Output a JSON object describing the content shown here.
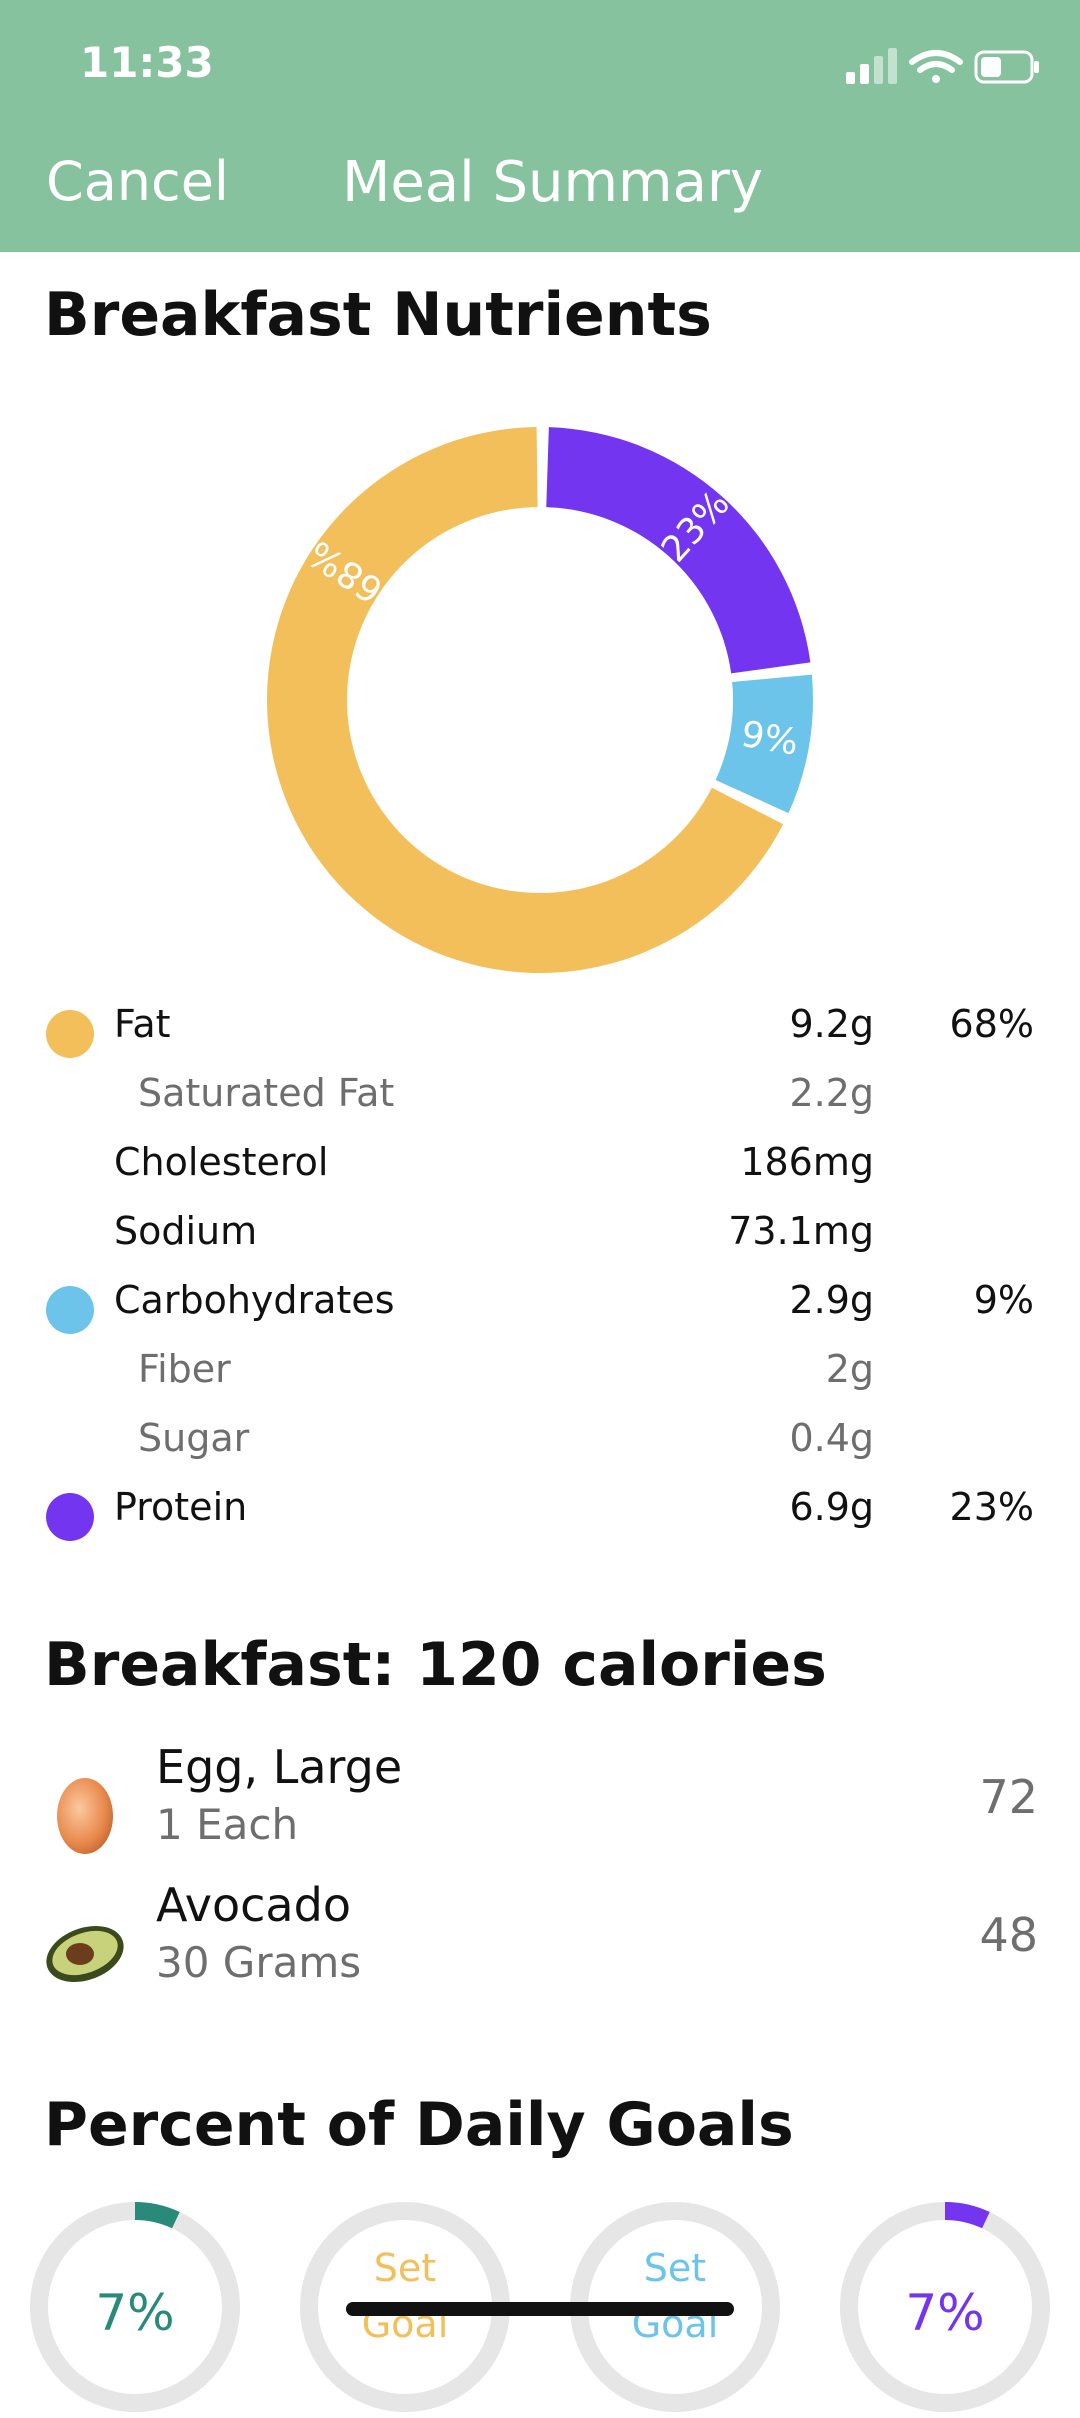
{
  "status_bar": {
    "time": "11:33"
  },
  "nav": {
    "cancel_label": "Cancel",
    "title": "Meal Summary"
  },
  "nutrients": {
    "title": "Breakfast Nutrients",
    "chart_data": {
      "type": "donut",
      "series": [
        {
          "name": "Fat",
          "percent": 68,
          "label": "68%",
          "color": "#f2bf5a"
        },
        {
          "name": "Carbohydrates",
          "percent": 9,
          "label": "9%",
          "color": "#6cc4ea"
        },
        {
          "name": "Protein",
          "percent": 23,
          "label": "23%",
          "color": "#7335f0"
        }
      ]
    },
    "rows": [
      {
        "name": "Fat",
        "amount": "9.2g",
        "pct": "68%",
        "color": "#f2bf5a",
        "sub": false
      },
      {
        "name": "Saturated Fat",
        "amount": "2.2g",
        "pct": "",
        "sub": true
      },
      {
        "name": "Cholesterol",
        "amount": "186mg",
        "pct": "",
        "sub": false
      },
      {
        "name": "Sodium",
        "amount": "73.1mg",
        "pct": "",
        "sub": false
      },
      {
        "name": "Carbohydrates",
        "amount": "2.9g",
        "pct": "9%",
        "color": "#6cc4ea",
        "sub": false
      },
      {
        "name": "Fiber",
        "amount": "2g",
        "pct": "",
        "sub": true
      },
      {
        "name": "Sugar",
        "amount": "0.4g",
        "pct": "",
        "sub": true
      },
      {
        "name": "Protein",
        "amount": "6.9g",
        "pct": "23%",
        "color": "#7335f0",
        "sub": false
      }
    ]
  },
  "calories": {
    "title": "Breakfast: 120 calories",
    "items": [
      {
        "name": "Egg, Large",
        "quantity": "1 Each",
        "calories": "72",
        "icon": "egg-icon"
      },
      {
        "name": "Avocado",
        "quantity": "30 Grams",
        "calories": "48",
        "icon": "avocado-icon"
      }
    ]
  },
  "goals": {
    "title": "Percent of Daily Goals",
    "items": [
      {
        "label": "7%",
        "progress": 0.07,
        "color": "#2a8a7a"
      },
      {
        "label": "Set Goal",
        "progress": 0,
        "color": "#f2bf5a"
      },
      {
        "label": "Set Goal",
        "progress": 0,
        "color": "#6cc4ea"
      },
      {
        "label": "7%",
        "progress": 0.07,
        "color": "#7335f0"
      }
    ]
  },
  "colors": {
    "header": "#86c29e",
    "fat": "#f2bf5a",
    "carbs": "#6cc4ea",
    "protein": "#7335f0"
  }
}
